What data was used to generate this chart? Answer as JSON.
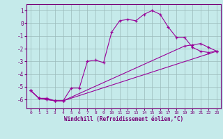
{
  "xlabel": "Windchill (Refroidissement éolien,°C)",
  "background_color": "#c5eaea",
  "grid_color": "#9bbaba",
  "line_color": "#990099",
  "xlim": [
    -0.5,
    23.5
  ],
  "ylim": [
    -6.7,
    1.5
  ],
  "yticks": [
    1,
    0,
    -1,
    -2,
    -3,
    -4,
    -5,
    -6
  ],
  "xticks": [
    0,
    1,
    2,
    3,
    4,
    5,
    6,
    7,
    8,
    9,
    10,
    11,
    12,
    13,
    14,
    15,
    16,
    17,
    18,
    19,
    20,
    21,
    22,
    23
  ],
  "line1_x": [
    0,
    1,
    2,
    3,
    4,
    5,
    6,
    7,
    8,
    9,
    10,
    11,
    12,
    13,
    14,
    15,
    16,
    17,
    18,
    19,
    20,
    21,
    22,
    23
  ],
  "line1_y": [
    -5.3,
    -5.9,
    -5.9,
    -6.1,
    -6.1,
    -5.1,
    -5.1,
    -3.0,
    -2.9,
    -3.1,
    -0.7,
    0.2,
    0.3,
    0.2,
    0.7,
    1.0,
    0.7,
    -0.3,
    -1.1,
    -1.1,
    -1.9,
    -2.2,
    -2.3,
    -2.2
  ],
  "line2_x": [
    0,
    1,
    2,
    3,
    4,
    23
  ],
  "line2_y": [
    -5.3,
    -5.9,
    -6.0,
    -6.1,
    -6.1,
    -2.2
  ],
  "line3_x": [
    0,
    1,
    2,
    3,
    4,
    19,
    20,
    21,
    22,
    23
  ],
  "line3_y": [
    -5.3,
    -5.9,
    -6.0,
    -6.1,
    -6.1,
    -1.8,
    -1.7,
    -1.6,
    -1.9,
    -2.2
  ]
}
